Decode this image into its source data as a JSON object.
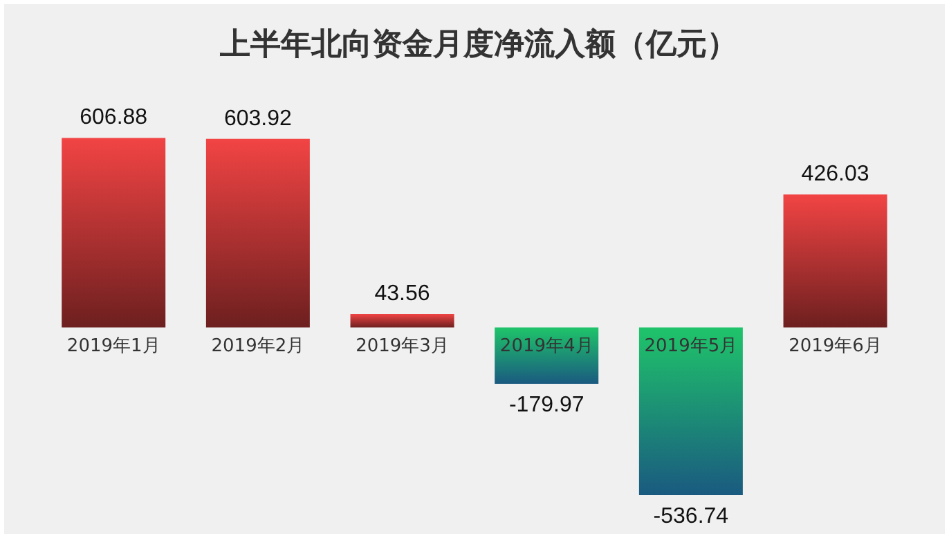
{
  "chart_data": {
    "type": "bar",
    "title": "上半年北向资金月度净流入额（亿元）",
    "categories": [
      "2019年1月",
      "2019年2月",
      "2019年3月",
      "2019年4月",
      "2019年5月",
      "2019年6月"
    ],
    "values": [
      606.88,
      603.92,
      43.56,
      -179.97,
      -536.74,
      426.03
    ],
    "colors": [
      "#f24444",
      "#f24444",
      "#f24444",
      "#1fc46a",
      "#1fc46a",
      "#f24444"
    ],
    "data_labels": true
  }
}
